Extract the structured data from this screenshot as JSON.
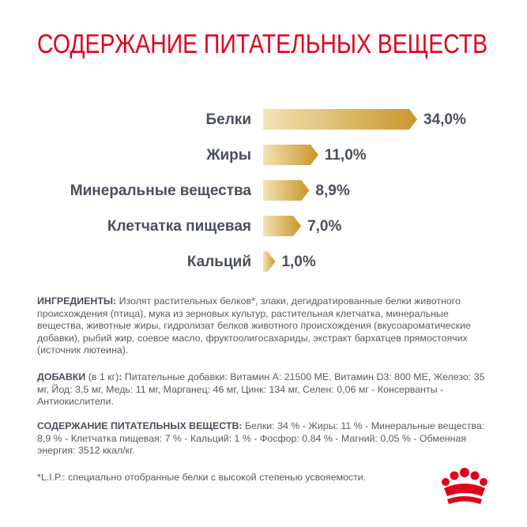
{
  "chart_data": {
    "type": "bar",
    "orientation": "horizontal",
    "title": "СОДЕРЖАНИЕ ПИТАТЕЛЬНЫХ ВЕЩЕСТВ",
    "categories": [
      "Белки",
      "Жиры",
      "Минеральные вещества",
      "Клетчатка пищевая",
      "Кальций"
    ],
    "values": [
      34.0,
      11.0,
      8.9,
      7.0,
      1.0
    ],
    "value_labels": [
      "34,0%",
      "11,0%",
      "8,9%",
      "7,0%",
      "1,0%"
    ],
    "color": "#c9962a",
    "color_light": "#f3e3b6"
  },
  "ingredients": {
    "label": "ИНГРЕДИЕНТЫ:",
    "text": "Изолят растительных белков*, злаки, дегидратированные белки животного происхождения (птица), мука из зерновых культур, растительная клетчатка, минеральные вещества, животные жиры, гидролизат белков животного происхождения (вкусоароматические добавки), рыбий жир, соевое масло, фруктоолигосахариды, экстракт бархатцев прямостоячих (источник лютеина)."
  },
  "additives": {
    "label": "ДОБАВКИ",
    "note": " (в 1 кг)",
    "colon": ":",
    "text": "Питательные добавки: Витамин А: 21500 МЕ, Витамин D3: 800 МЕ, Железо: 35 мг, Йод: 3,5 мг, Медь: 11 мг, Марганец: 46 мг, Цинк: 134 мг, Селен: 0,06 мг - Консерванты - Антиокислители."
  },
  "nutrients": {
    "label": "СОДЕРЖАНИЕ ПИТАТЕЛЬНЫХ ВЕЩЕСТВ:",
    "text": "Белки: 34 % - Жиры: 11 % - Минеральные вещества: 8,9 % - Клетчатка пищевая: 7 % - Кальций: 1 % - Фосфор: 0,84 % - Магний: 0,05 % - Обменная энергия: 3512 ккал/кг."
  },
  "footnote": "*L.I.P.: специально отобранные белки с высокой степенью усвояемости."
}
